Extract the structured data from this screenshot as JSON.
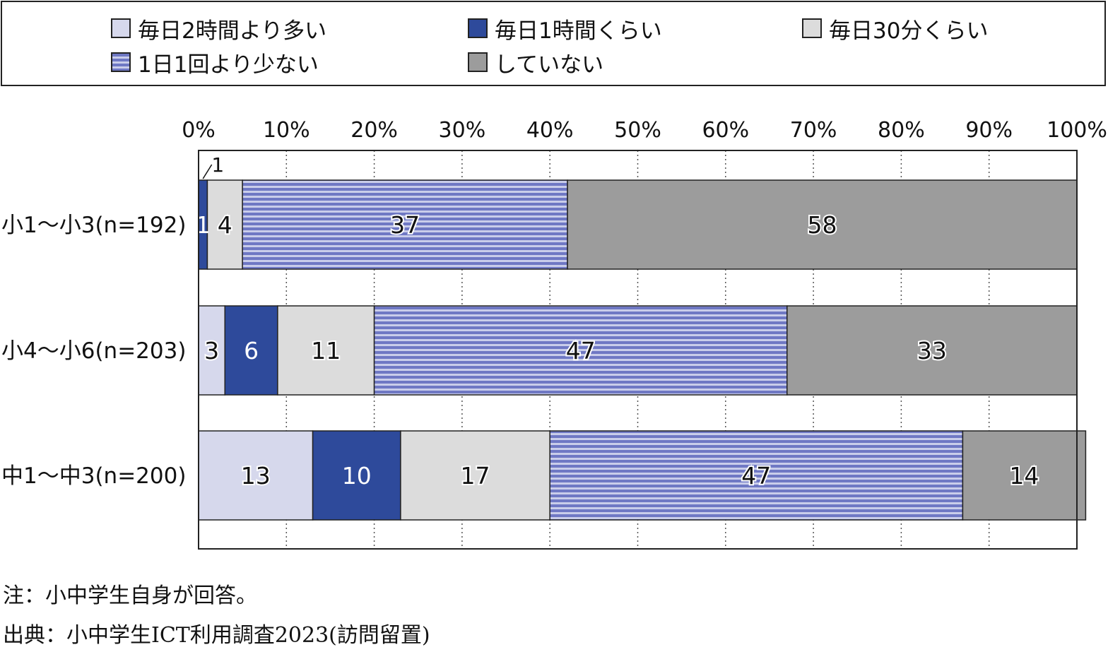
{
  "chart_data": {
    "type": "bar",
    "orientation": "horizontal",
    "stacked": "percent",
    "categories": [
      "小1～小3(n=192)",
      "小4～小6(n=203)",
      "中1～中3(n=200)"
    ],
    "series": [
      {
        "name": "毎日2時間より多い",
        "values": [
          0,
          3,
          13
        ],
        "color": "#d6d8ec",
        "pattern": "solid"
      },
      {
        "name": "毎日1時間くらい",
        "values": [
          1,
          6,
          10
        ],
        "color": "#2e4a9b",
        "pattern": "solid"
      },
      {
        "name": "毎日30分くらい",
        "values": [
          4,
          11,
          17
        ],
        "color": "#dcdcdc",
        "pattern": "solid"
      },
      {
        "name": "1日1回より少ない",
        "values": [
          37,
          47,
          47
        ],
        "color": "#6f78c4",
        "stripe_color": "#c9cdea",
        "pattern": "horizontal-stripes"
      },
      {
        "name": "していない",
        "values": [
          58,
          33,
          14
        ],
        "color": "#9c9c9c",
        "pattern": "solid"
      }
    ],
    "data_labels": [
      [
        "",
        "1",
        "4",
        "37",
        "58"
      ],
      [
        "3",
        "6",
        "11",
        "47",
        "33"
      ],
      [
        "13",
        "10",
        "17",
        "47",
        "14"
      ]
    ],
    "callout_label": "1",
    "x_ticks": [
      "0%",
      "10%",
      "20%",
      "30%",
      "40%",
      "50%",
      "60%",
      "70%",
      "80%",
      "90%",
      "100%"
    ],
    "xlim": [
      0,
      100
    ],
    "grid": "vertical dotted",
    "legend_position": "top"
  },
  "notes": {
    "note": "注：小中学生自身が回答。",
    "source": "出典：小中学生ICT利用調査2023(訪問留置)"
  }
}
